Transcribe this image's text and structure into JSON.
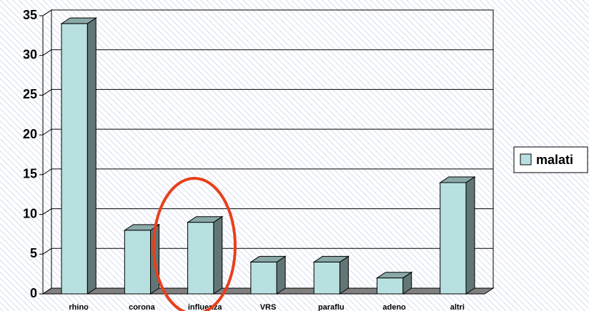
{
  "chart_data": {
    "type": "bar3d",
    "categories": [
      "rhino",
      "corona",
      "influenza",
      "VRS",
      "paraflu",
      "adeno",
      "altri"
    ],
    "series": [
      {
        "name": "malati",
        "color": "#b8e0e0",
        "values": [
          34,
          8,
          9,
          4,
          4,
          2,
          14
        ]
      }
    ],
    "ylim": [
      0,
      35
    ],
    "yticks": [
      0,
      5,
      10,
      15,
      20,
      25,
      30,
      35
    ],
    "grid": true,
    "legend": "right"
  }
}
